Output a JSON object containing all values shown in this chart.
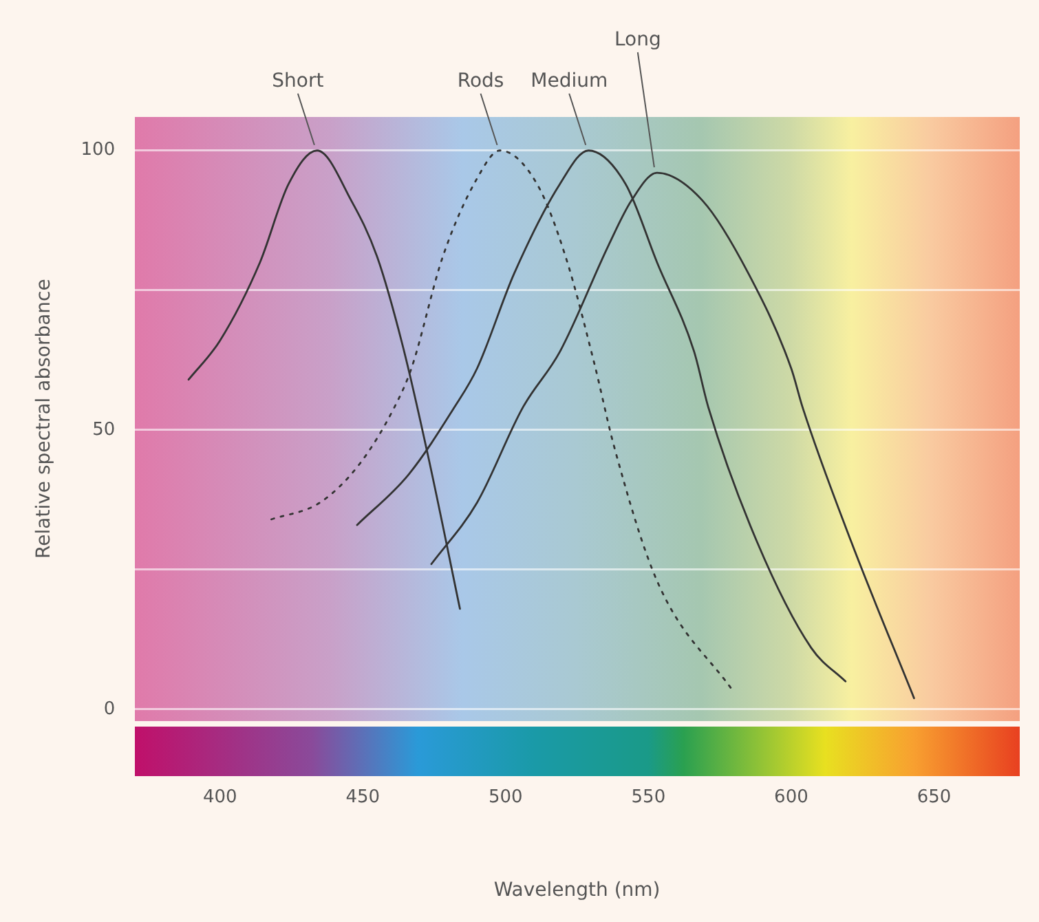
{
  "chart_data": {
    "type": "line",
    "xlabel": "Wavelength (nm)",
    "ylabel": "Relative spectral absorbance",
    "xlim": [
      370,
      680
    ],
    "xticks": [
      400,
      450,
      500,
      550,
      600,
      650
    ],
    "ylim": [
      -2,
      106
    ],
    "yticks": [
      0,
      {
        "value": 25,
        "label": null
      },
      50,
      {
        "value": 75,
        "label": null
      },
      100
    ],
    "grid": "y",
    "legend": false,
    "marker": "none",
    "series": [
      {
        "name": "Short",
        "color": "#333333",
        "line_style": "solid",
        "x": [
          389,
          400,
          414,
          424,
          434,
          446,
          455,
          464,
          473,
          484
        ],
        "values": [
          59,
          66,
          80,
          94,
          100,
          91,
          81,
          65,
          45,
          18
        ]
      },
      {
        "name": "Rods",
        "color": "#333333",
        "line_style": "dotted",
        "x": [
          418,
          435,
          449,
          461,
          467,
          478,
          490,
          498,
          511,
          521,
          531,
          538,
          553,
          580
        ],
        "values": [
          34,
          37,
          44,
          54,
          61,
          81,
          95,
          100,
          94,
          81,
          62,
          47,
          23,
          3
        ]
      },
      {
        "name": "Medium",
        "color": "#333333",
        "line_style": "solid",
        "x": [
          448,
          466,
          482,
          490,
          503,
          519,
          529,
          542,
          553,
          566,
          571,
          588,
          607,
          619
        ],
        "values": [
          33,
          42,
          54,
          61,
          78,
          94,
          100,
          94,
          80,
          64,
          54,
          30,
          11,
          5
        ]
      },
      {
        "name": "Long",
        "color": "#333333",
        "line_style": "solid",
        "x": [
          474,
          490,
          506,
          519,
          536,
          544,
          553,
          569,
          585,
          600,
          604,
          621,
          643
        ],
        "values": [
          26,
          37,
          54,
          64,
          83,
          91,
          96,
          91,
          78,
          61,
          54,
          30,
          2
        ]
      }
    ]
  }
}
